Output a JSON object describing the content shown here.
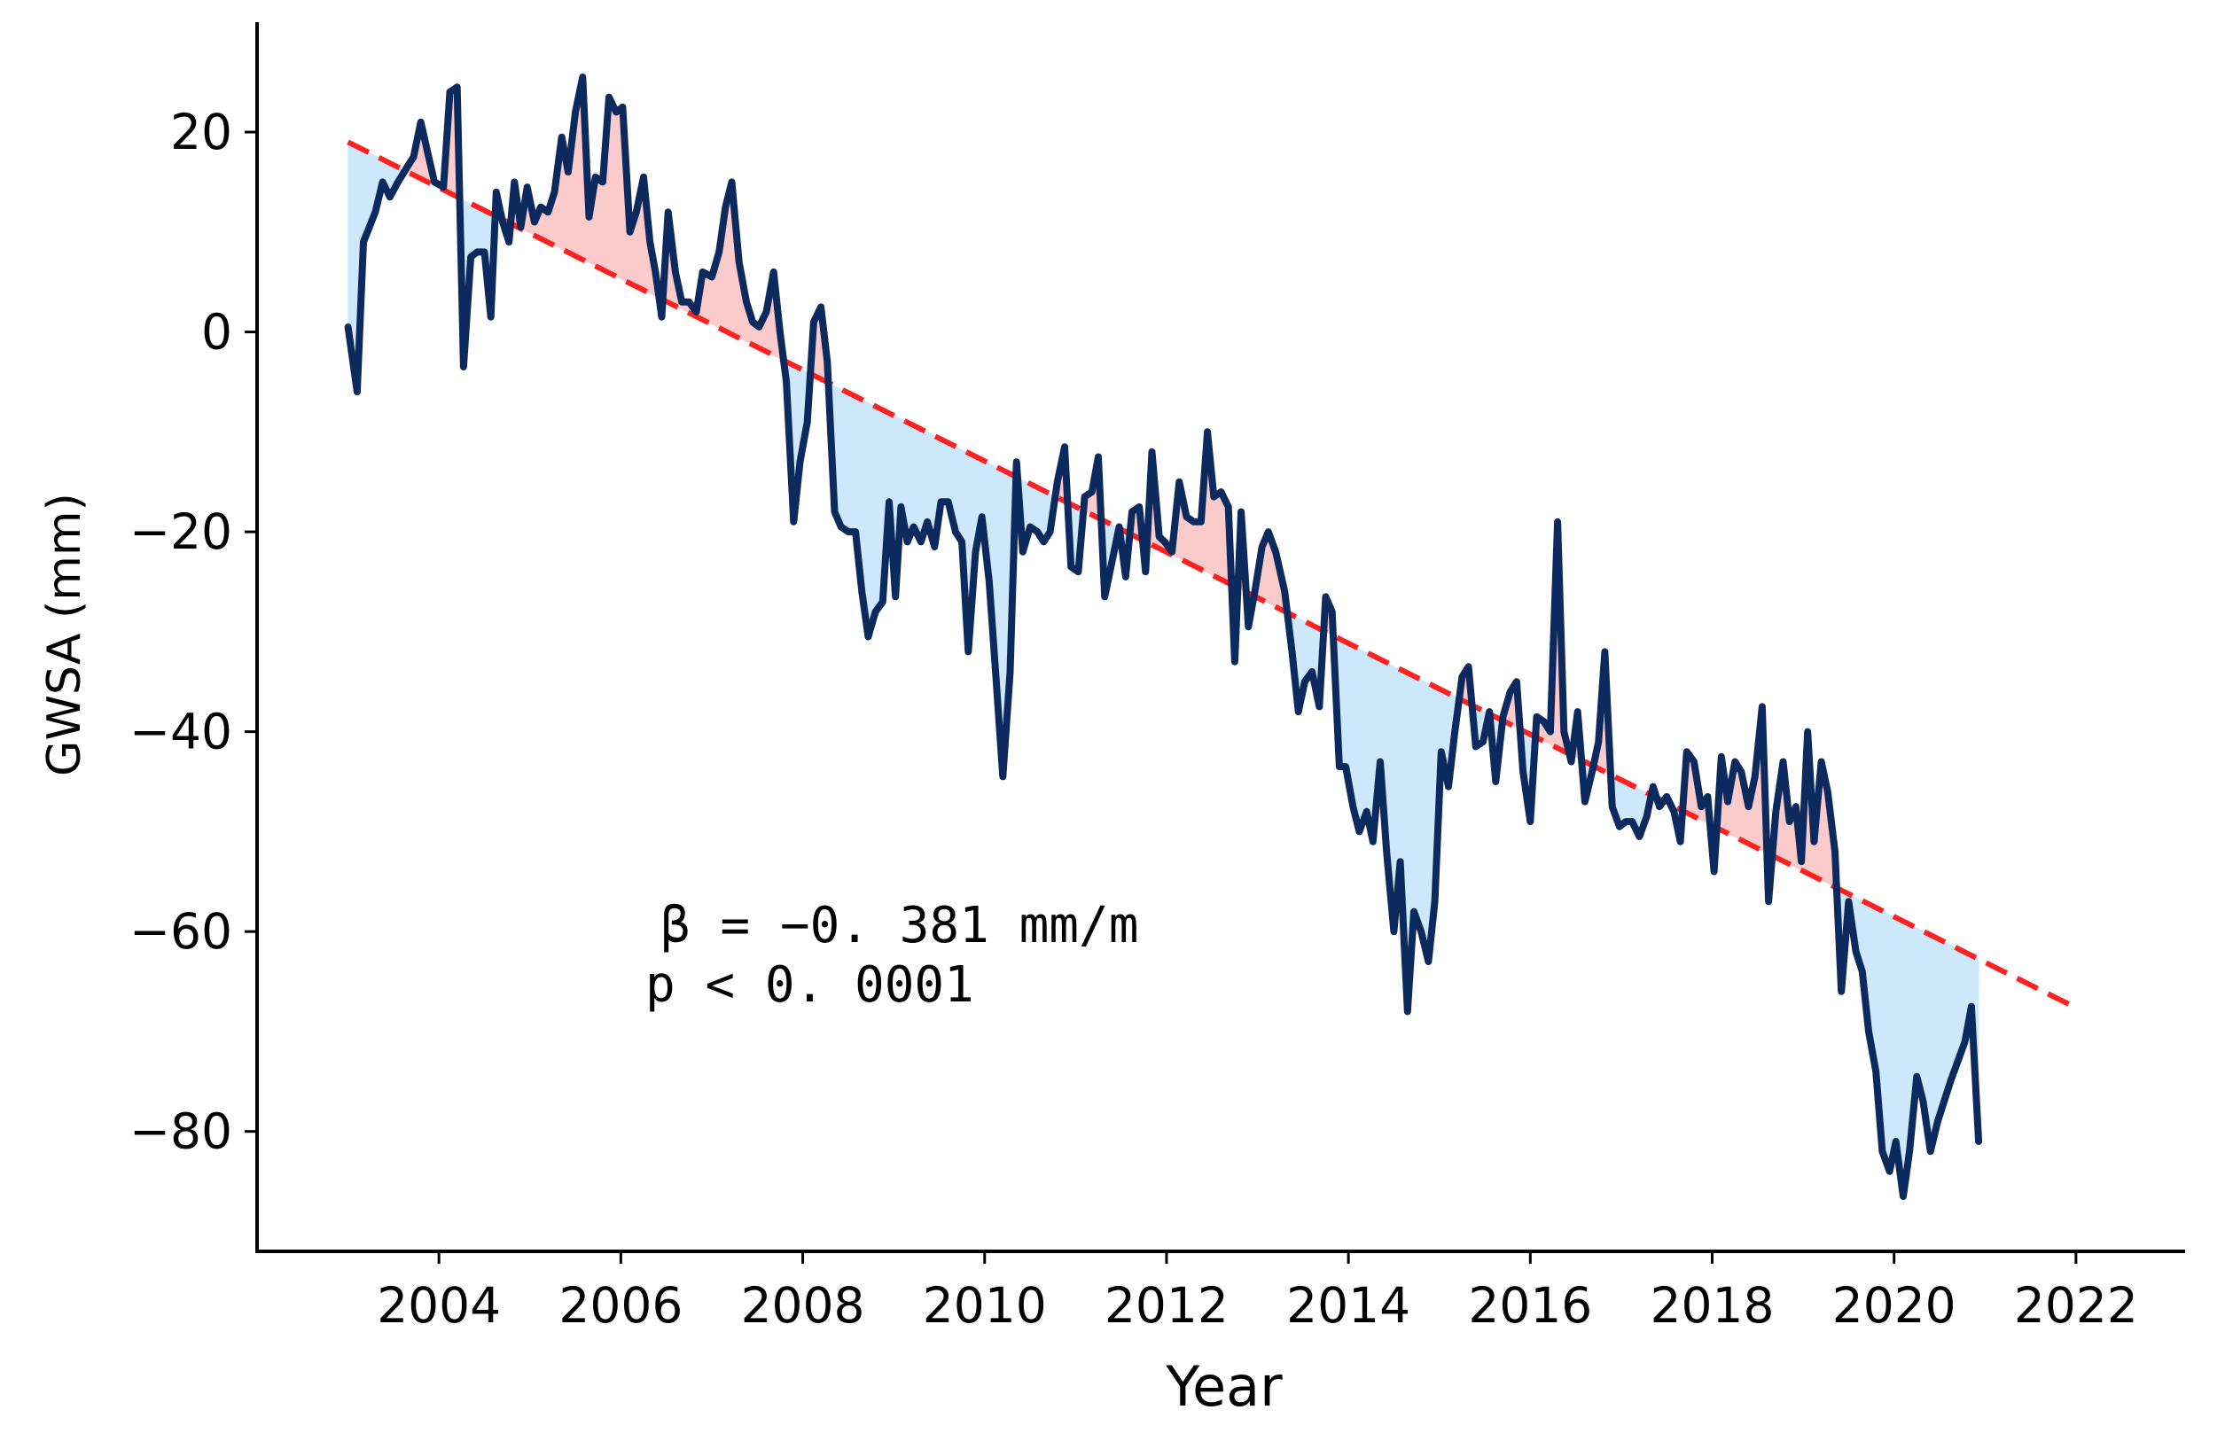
{
  "chart_data": {
    "type": "line",
    "xlabel": "Year",
    "ylabel": "GWSA (mm)",
    "xlim": [
      2002.0,
      2023.2
    ],
    "ylim": [
      -92,
      31
    ],
    "x_ticks": [
      2004,
      2006,
      2008,
      2010,
      2012,
      2014,
      2016,
      2018,
      2020,
      2022
    ],
    "y_ticks": [
      20,
      0,
      -20,
      -40,
      -60,
      -80
    ],
    "x_tick_labels": [
      "2004",
      "2006",
      "2008",
      "2010",
      "2012",
      "2014",
      "2016",
      "2018",
      "2020",
      "2022"
    ],
    "y_tick_labels": [
      "20",
      "0",
      "−20",
      "−40",
      "−60",
      "−80"
    ],
    "annotation": {
      "line1": "β  = −0. 381 mm/m",
      "line2": "p < 0. 0001"
    },
    "trend": {
      "name": "linear trend",
      "slope_mm_per_month": -0.381,
      "start": [
        2003.0,
        19.0
      ],
      "end": [
        2021.95,
        -67.4
      ],
      "color": "#ff2020",
      "style": "dashed"
    },
    "colors": {
      "series": "#0d2a5e",
      "above_fill": "#fbcaca",
      "below_fill": "#cde8fb"
    },
    "series": [
      {
        "name": "GWSA",
        "points": [
          [
            2003.0,
            0.5
          ],
          [
            2003.1,
            -6
          ],
          [
            2003.17,
            9
          ],
          [
            2003.3,
            12
          ],
          [
            2003.38,
            15
          ],
          [
            2003.46,
            13.5
          ],
          [
            2003.55,
            15
          ],
          [
            2003.65,
            16.5
          ],
          [
            2003.72,
            17.5
          ],
          [
            2003.8,
            21
          ],
          [
            2003.9,
            17
          ],
          [
            2003.95,
            15
          ],
          [
            2004.05,
            14.5
          ],
          [
            2004.12,
            24
          ],
          [
            2004.2,
            24.5
          ],
          [
            2004.27,
            -3.5
          ],
          [
            2004.35,
            7.5
          ],
          [
            2004.42,
            8
          ],
          [
            2004.5,
            8
          ],
          [
            2004.57,
            1.5
          ],
          [
            2004.63,
            14
          ],
          [
            2004.7,
            11
          ],
          [
            2004.77,
            9
          ],
          [
            2004.83,
            15
          ],
          [
            2004.9,
            10.5
          ],
          [
            2004.97,
            14.5
          ],
          [
            2005.05,
            11
          ],
          [
            2005.12,
            12.5
          ],
          [
            2005.2,
            12
          ],
          [
            2005.27,
            14
          ],
          [
            2005.35,
            19.5
          ],
          [
            2005.42,
            16
          ],
          [
            2005.5,
            22
          ],
          [
            2005.58,
            25.5
          ],
          [
            2005.65,
            11.5
          ],
          [
            2005.72,
            15.5
          ],
          [
            2005.8,
            15
          ],
          [
            2005.87,
            23.5
          ],
          [
            2005.95,
            22
          ],
          [
            2006.02,
            22.5
          ],
          [
            2006.1,
            10
          ],
          [
            2006.17,
            12
          ],
          [
            2006.25,
            15.5
          ],
          [
            2006.32,
            9
          ],
          [
            2006.38,
            6
          ],
          [
            2006.45,
            1.5
          ],
          [
            2006.52,
            12
          ],
          [
            2006.6,
            6
          ],
          [
            2006.67,
            3
          ],
          [
            2006.75,
            3
          ],
          [
            2006.83,
            2
          ],
          [
            2006.9,
            6
          ],
          [
            2007.0,
            5.5
          ],
          [
            2007.08,
            8
          ],
          [
            2007.15,
            12.5
          ],
          [
            2007.22,
            15
          ],
          [
            2007.3,
            7
          ],
          [
            2007.38,
            3
          ],
          [
            2007.45,
            1
          ],
          [
            2007.52,
            0.5
          ],
          [
            2007.6,
            2
          ],
          [
            2007.68,
            6
          ],
          [
            2007.75,
            0
          ],
          [
            2007.82,
            -5
          ],
          [
            2007.9,
            -19
          ],
          [
            2007.97,
            -13
          ],
          [
            2008.05,
            -9
          ],
          [
            2008.12,
            1
          ],
          [
            2008.2,
            2.5
          ],
          [
            2008.27,
            -3
          ],
          [
            2008.35,
            -18
          ],
          [
            2008.42,
            -19.5
          ],
          [
            2008.5,
            -20
          ],
          [
            2008.58,
            -20
          ],
          [
            2008.65,
            -26
          ],
          [
            2008.72,
            -30.5
          ],
          [
            2008.8,
            -28
          ],
          [
            2008.88,
            -27
          ],
          [
            2008.95,
            -17
          ],
          [
            2009.02,
            -26.5
          ],
          [
            2009.08,
            -17.5
          ],
          [
            2009.15,
            -21
          ],
          [
            2009.22,
            -19.5
          ],
          [
            2009.3,
            -21
          ],
          [
            2009.37,
            -19
          ],
          [
            2009.45,
            -21.5
          ],
          [
            2009.52,
            -17
          ],
          [
            2009.6,
            -17
          ],
          [
            2009.68,
            -20
          ],
          [
            2009.75,
            -21
          ],
          [
            2009.82,
            -32
          ],
          [
            2009.9,
            -22
          ],
          [
            2009.97,
            -18.5
          ],
          [
            2010.05,
            -25
          ],
          [
            2010.12,
            -34
          ],
          [
            2010.2,
            -44.5
          ],
          [
            2010.28,
            -34
          ],
          [
            2010.35,
            -13
          ],
          [
            2010.42,
            -22
          ],
          [
            2010.5,
            -19.5
          ],
          [
            2010.58,
            -20
          ],
          [
            2010.65,
            -21
          ],
          [
            2010.72,
            -20
          ],
          [
            2010.8,
            -15
          ],
          [
            2010.88,
            -11.5
          ],
          [
            2010.95,
            -23.5
          ],
          [
            2011.03,
            -24
          ],
          [
            2011.1,
            -16.5
          ],
          [
            2011.18,
            -16
          ],
          [
            2011.25,
            -12.5
          ],
          [
            2011.32,
            -26.5
          ],
          [
            2011.4,
            -23
          ],
          [
            2011.48,
            -19.5
          ],
          [
            2011.55,
            -24.5
          ],
          [
            2011.62,
            -18
          ],
          [
            2011.7,
            -17.5
          ],
          [
            2011.77,
            -24
          ],
          [
            2011.84,
            -12
          ],
          [
            2011.92,
            -20.5
          ],
          [
            2011.98,
            -21
          ],
          [
            2012.06,
            -22
          ],
          [
            2012.14,
            -15
          ],
          [
            2012.22,
            -18.5
          ],
          [
            2012.3,
            -19
          ],
          [
            2012.38,
            -19
          ],
          [
            2012.45,
            -10
          ],
          [
            2012.52,
            -16.5
          ],
          [
            2012.6,
            -16
          ],
          [
            2012.68,
            -17.5
          ],
          [
            2012.75,
            -33
          ],
          [
            2012.82,
            -18
          ],
          [
            2012.9,
            -29.5
          ],
          [
            2012.97,
            -26
          ],
          [
            2013.05,
            -21.5
          ],
          [
            2013.12,
            -20
          ],
          [
            2013.2,
            -22
          ],
          [
            2013.3,
            -26
          ],
          [
            2013.38,
            -32
          ],
          [
            2013.45,
            -38
          ],
          [
            2013.52,
            -35
          ],
          [
            2013.6,
            -34
          ],
          [
            2013.68,
            -37.5
          ],
          [
            2013.75,
            -26.5
          ],
          [
            2013.82,
            -28
          ],
          [
            2013.9,
            -43.5
          ],
          [
            2013.97,
            -43.5
          ],
          [
            2014.05,
            -47.5
          ],
          [
            2014.12,
            -50
          ],
          [
            2014.2,
            -48
          ],
          [
            2014.27,
            -51
          ],
          [
            2014.35,
            -43
          ],
          [
            2014.42,
            -52
          ],
          [
            2014.5,
            -60
          ],
          [
            2014.57,
            -53
          ],
          [
            2014.65,
            -68
          ],
          [
            2014.72,
            -58
          ],
          [
            2014.8,
            -60
          ],
          [
            2014.88,
            -63
          ],
          [
            2014.95,
            -57
          ],
          [
            2015.02,
            -42
          ],
          [
            2015.1,
            -45.5
          ],
          [
            2015.17,
            -40
          ],
          [
            2015.25,
            -34.5
          ],
          [
            2015.32,
            -33.5
          ],
          [
            2015.4,
            -41.5
          ],
          [
            2015.48,
            -41
          ],
          [
            2015.55,
            -38
          ],
          [
            2015.62,
            -45
          ],
          [
            2015.7,
            -38.5
          ],
          [
            2015.78,
            -36
          ],
          [
            2015.85,
            -35
          ],
          [
            2015.92,
            -44
          ],
          [
            2016.0,
            -49
          ],
          [
            2016.07,
            -38.5
          ],
          [
            2016.15,
            -39
          ],
          [
            2016.22,
            -40
          ],
          [
            2016.3,
            -19
          ],
          [
            2016.37,
            -40
          ],
          [
            2016.45,
            -43
          ],
          [
            2016.52,
            -38
          ],
          [
            2016.6,
            -47
          ],
          [
            2016.68,
            -44
          ],
          [
            2016.75,
            -41
          ],
          [
            2016.82,
            -32
          ],
          [
            2016.9,
            -47.5
          ],
          [
            2016.98,
            -49.5
          ],
          [
            2017.05,
            -49
          ],
          [
            2017.12,
            -49
          ],
          [
            2017.2,
            -50.5
          ],
          [
            2017.28,
            -48.5
          ],
          [
            2017.35,
            -45.5
          ],
          [
            2017.42,
            -47.5
          ],
          [
            2017.5,
            -46.5
          ],
          [
            2017.58,
            -48
          ],
          [
            2017.65,
            -51
          ],
          [
            2017.72,
            -42
          ],
          [
            2017.8,
            -43
          ],
          [
            2017.88,
            -47.5
          ],
          [
            2017.95,
            -46.5
          ],
          [
            2018.02,
            -54
          ],
          [
            2018.1,
            -42.5
          ],
          [
            2018.17,
            -47
          ],
          [
            2018.25,
            -43
          ],
          [
            2018.32,
            -44
          ],
          [
            2018.4,
            -47.5
          ],
          [
            2018.47,
            -44.5
          ],
          [
            2018.55,
            -37.5
          ],
          [
            2018.62,
            -57
          ],
          [
            2018.7,
            -48
          ],
          [
            2018.78,
            -43
          ],
          [
            2018.85,
            -49
          ],
          [
            2018.92,
            -47.5
          ],
          [
            2018.98,
            -53
          ],
          [
            2019.05,
            -40
          ],
          [
            2019.12,
            -51
          ],
          [
            2019.2,
            -43
          ],
          [
            2019.27,
            -46
          ],
          [
            2019.35,
            -52
          ],
          [
            2019.42,
            -66
          ],
          [
            2019.5,
            -57
          ],
          [
            2019.58,
            -62
          ],
          [
            2019.65,
            -64
          ],
          [
            2019.72,
            -70
          ],
          [
            2019.8,
            -74
          ],
          [
            2019.87,
            -82
          ],
          [
            2019.95,
            -84
          ],
          [
            2020.02,
            -81
          ],
          [
            2020.1,
            -86.5
          ],
          [
            2020.17,
            -82
          ],
          [
            2020.25,
            -74.5
          ],
          [
            2020.32,
            -77
          ],
          [
            2020.4,
            -82
          ],
          [
            2020.48,
            -79
          ],
          [
            2020.55,
            -77
          ],
          [
            2020.62,
            -75
          ],
          [
            2020.7,
            -73
          ],
          [
            2020.78,
            -71
          ],
          [
            2020.85,
            -67.5
          ],
          [
            2020.93,
            -81
          ]
        ]
      }
    ]
  }
}
